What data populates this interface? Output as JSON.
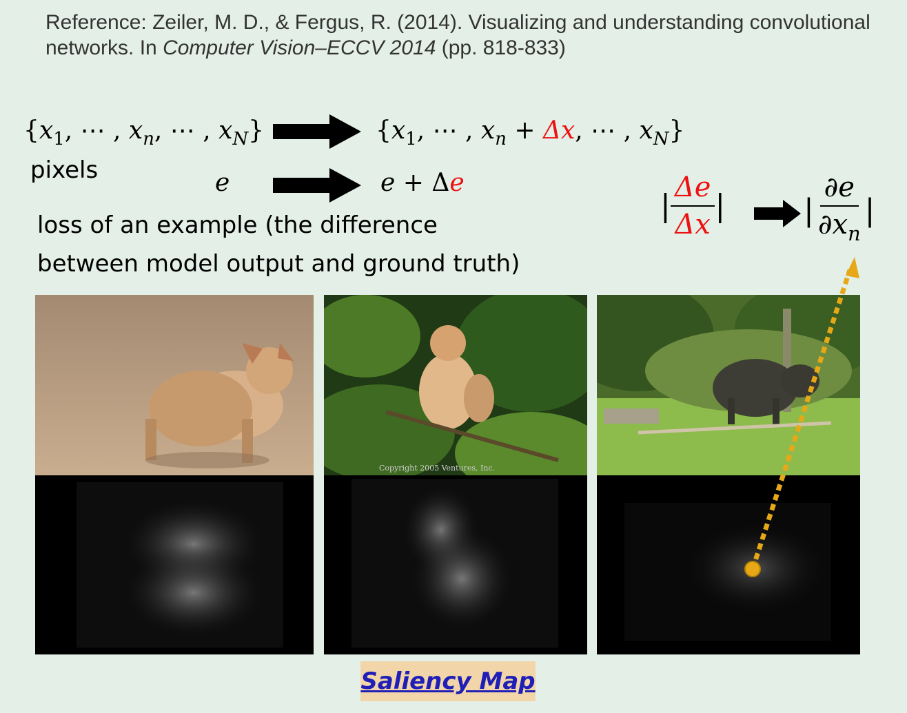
{
  "reference": {
    "prefix": "Reference: Zeiler, M. D., & Fergus, R. (2014). Visualizing and understanding convolutional networks. In ",
    "venue": "Computer Vision–ECCV 2014",
    "pages": " (pp. 818-833)"
  },
  "math": {
    "x1": "x",
    "sub1": "1",
    "xn": "x",
    "subn": "n",
    "xN": "x",
    "subN": "N",
    "delta_x": "Δx",
    "e": "e",
    "delta_e": "e",
    "delta_symbol": "Δ",
    "frac_num": "Δe",
    "frac_den": "Δx",
    "partial_num": "∂e",
    "partial_den": "∂x",
    "partial_sub": "n"
  },
  "labels": {
    "pixels": "pixels",
    "loss_line1": "loss of an example (the difference",
    "loss_line2": "between model output and ground truth)"
  },
  "images": [
    {
      "subject": "puppy"
    },
    {
      "subject": "monkey",
      "watermark": "Copyright 2005 Ventures, Inc."
    },
    {
      "subject": "buffalo"
    }
  ],
  "colors": {
    "background": "#e3efe7",
    "highlight_red": "#e11",
    "arrow_yellow": "#e6a817",
    "badge_bg": "#f2d6a9",
    "badge_text": "#1f1fb8"
  },
  "badge": {
    "label": "Saliency Map"
  }
}
